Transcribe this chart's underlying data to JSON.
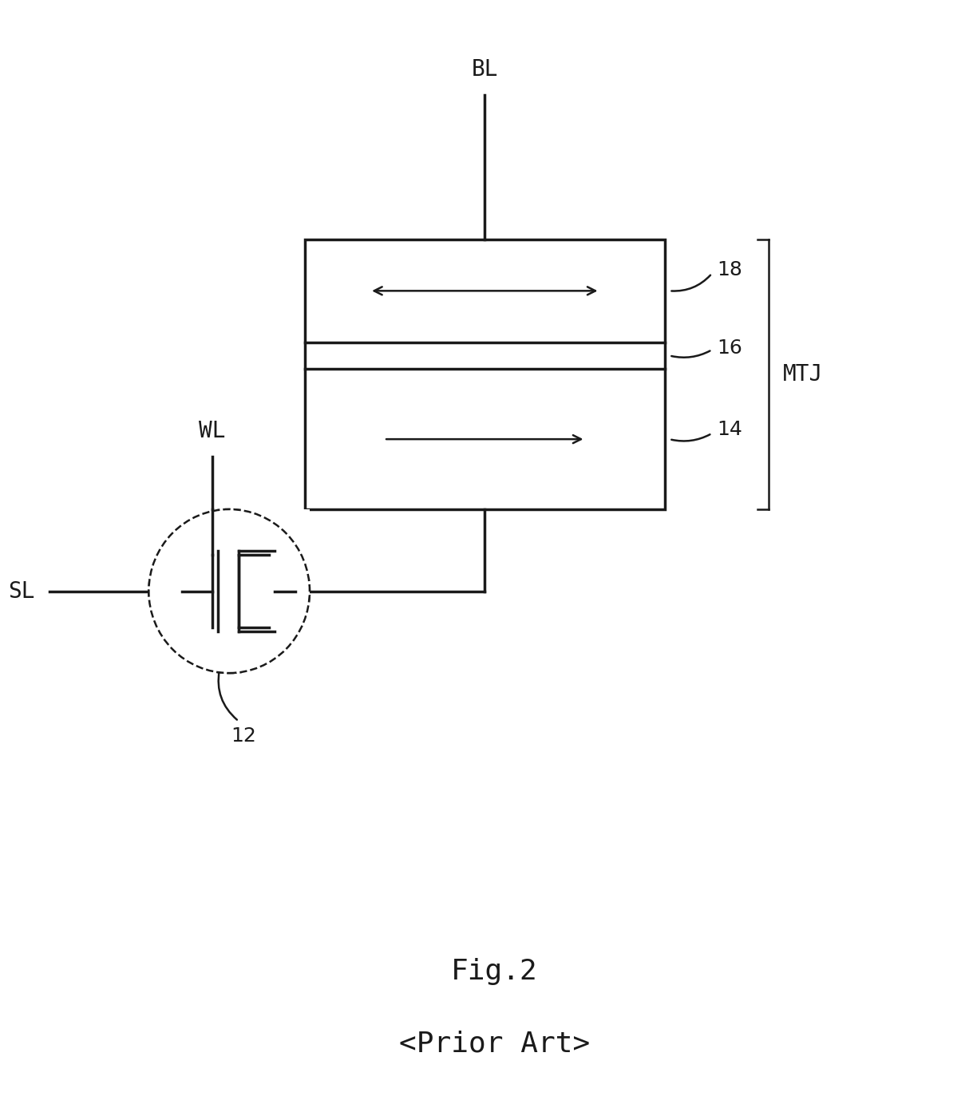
{
  "bg_color": "#ffffff",
  "line_color": "#1a1a1a",
  "fig_width": 12.19,
  "fig_height": 13.93,
  "bl_label": "BL",
  "wl_label": "WL",
  "sl_label": "SL",
  "label_12": "12",
  "label_14": "14",
  "label_16": "16",
  "label_18": "18",
  "label_mtj": "MTJ",
  "fig_label": "Fig.2",
  "fig_sublabel": "<Prior Art>",
  "label_fontsize": 20,
  "small_label_fontsize": 18,
  "mtj_fontsize": 20,
  "caption_fontsize": 26
}
